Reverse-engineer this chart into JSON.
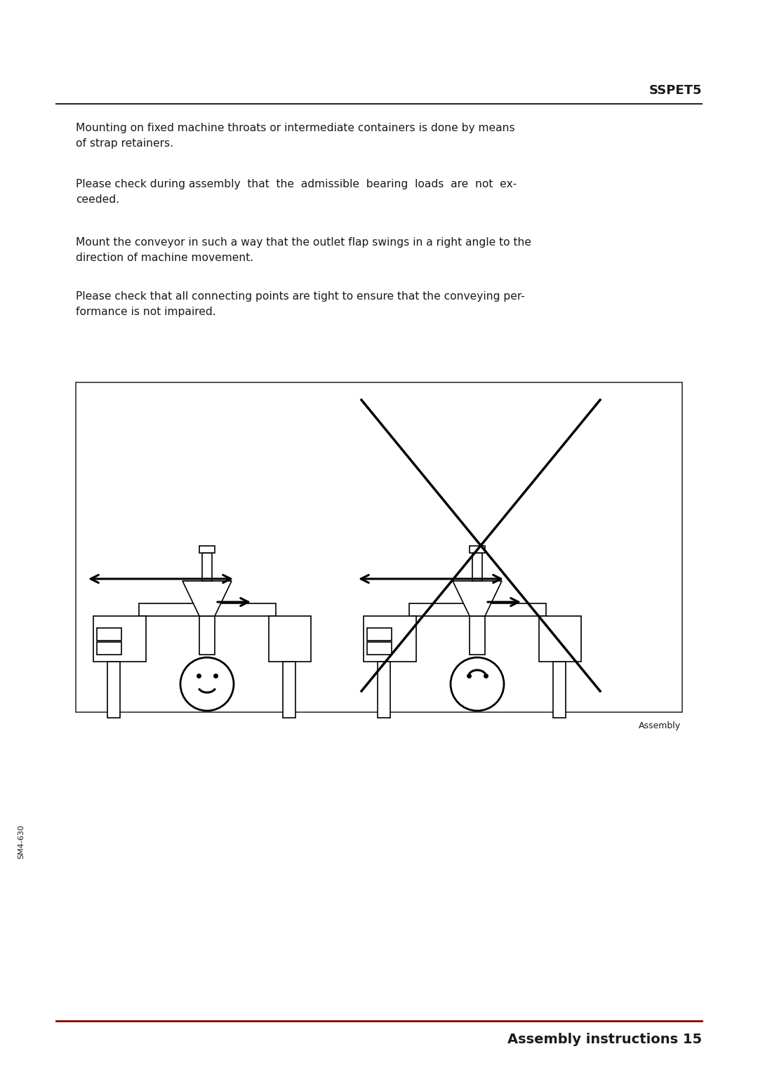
{
  "title": "SSPET5",
  "footer": "Assembly instructions 15",
  "footer_label": "Assembly",
  "side_label": "SM4-630",
  "para1": "Mounting on fixed machine throats or intermediate containers is done by means\nof strap retainers.",
  "para2": "Please check during assembly  that  the  admissible  bearing  loads  are  not  ex-\nceeded.",
  "para3": "Mount the conveyor in such a way that the outlet flap swings in a right angle to the\ndirection of machine movement.",
  "para4": "Please check that all connecting points are tight to ensure that the conveying per-\nformance is not impaired.",
  "bg_color": "#ffffff",
  "text_color": "#1a1a1a",
  "line_color": "#2a2a2a",
  "red_line_color": "#8B0000",
  "diagram_border": "#333333"
}
